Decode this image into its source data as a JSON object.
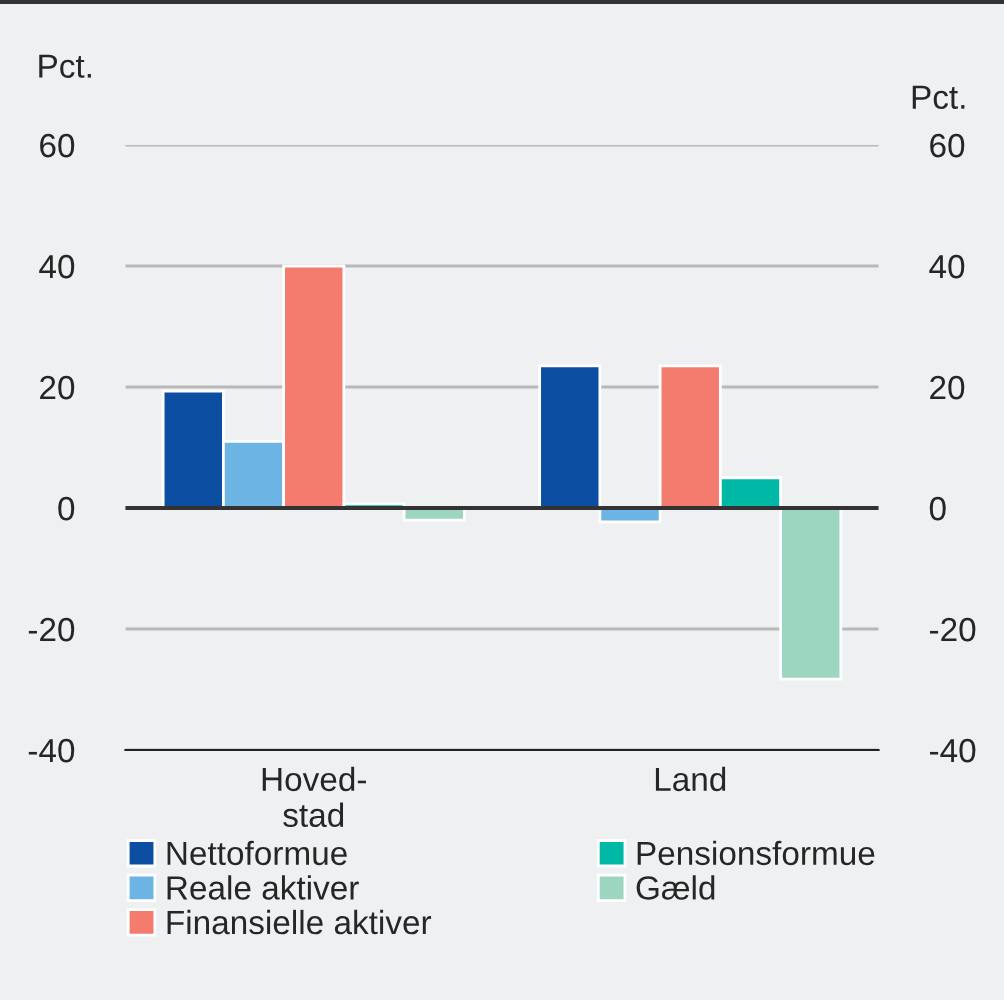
{
  "chart_data": {
    "type": "bar",
    "ylabel": "Pct.",
    "y2label": "Pct.",
    "categories": [
      "Hoved-\nstad",
      "Land"
    ],
    "series": [
      {
        "name": "Nettoformue",
        "color": "#0b4ea2",
        "values": [
          19.3,
          23.5
        ]
      },
      {
        "name": "Reale aktiver",
        "color": "#6cb4e4",
        "values": [
          11,
          -2.3
        ]
      },
      {
        "name": "Finansielle aktiver",
        "color": "#f47c6f",
        "values": [
          40,
          23.5
        ]
      },
      {
        "name": "Pensionsformue",
        "color": "#00b8a6",
        "values": [
          0.7,
          5
        ]
      },
      {
        "name": "Gæld",
        "color": "#9dd6c0",
        "values": [
          -2,
          -28.3
        ]
      }
    ],
    "ylim": [
      -40,
      60
    ],
    "yticks": [
      -40,
      -20,
      0,
      20,
      40,
      60
    ],
    "y2lim": [
      -40,
      60
    ],
    "y2ticks": [
      -40,
      -20,
      0,
      20,
      40,
      60
    ],
    "ref_lines": [
      {
        "axis": "y",
        "value": 0,
        "color": "#333333"
      }
    ],
    "grid": "y",
    "legend": "bottom"
  }
}
